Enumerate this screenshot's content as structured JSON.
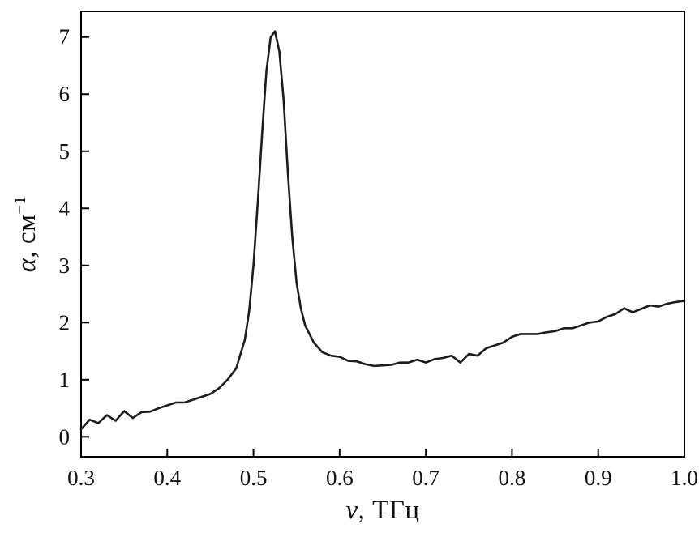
{
  "chart_data": {
    "type": "line",
    "title": "",
    "xlabel": "ν, ТГц",
    "ylabel": "α, см⁻¹",
    "xlabel_parts": {
      "var": "ν",
      "rest": ", ТГц"
    },
    "ylabel_parts": {
      "var": "α",
      "rest": ", см",
      "sup": "−1"
    },
    "xlim": [
      0.3,
      1.0
    ],
    "ylim": [
      -0.35,
      7.45
    ],
    "xticks": [
      0.3,
      0.4,
      0.5,
      0.6,
      0.7,
      0.8,
      0.9,
      1.0
    ],
    "yticks": [
      0,
      1,
      2,
      3,
      4,
      5,
      6,
      7
    ],
    "xtick_labels": [
      "0.3",
      "0.4",
      "0.5",
      "0.6",
      "0.7",
      "0.8",
      "0.9",
      "1.0"
    ],
    "ytick_labels": [
      "0",
      "1",
      "2",
      "3",
      "4",
      "5",
      "6",
      "7"
    ],
    "grid": false,
    "legend_position": "none",
    "line_color": "#1c1c1c",
    "line_width": 2.6,
    "frame_color": "#000000",
    "series": [
      {
        "name": "absorption-spectrum",
        "x": [
          0.3,
          0.31,
          0.32,
          0.33,
          0.34,
          0.35,
          0.36,
          0.37,
          0.38,
          0.39,
          0.4,
          0.41,
          0.42,
          0.43,
          0.44,
          0.45,
          0.46,
          0.47,
          0.48,
          0.49,
          0.495,
          0.5,
          0.505,
          0.51,
          0.515,
          0.52,
          0.525,
          0.53,
          0.535,
          0.54,
          0.545,
          0.55,
          0.555,
          0.56,
          0.57,
          0.58,
          0.59,
          0.6,
          0.61,
          0.62,
          0.63,
          0.64,
          0.65,
          0.66,
          0.67,
          0.68,
          0.69,
          0.7,
          0.71,
          0.72,
          0.73,
          0.74,
          0.75,
          0.76,
          0.77,
          0.78,
          0.79,
          0.8,
          0.81,
          0.82,
          0.83,
          0.84,
          0.85,
          0.86,
          0.87,
          0.88,
          0.89,
          0.9,
          0.91,
          0.92,
          0.93,
          0.94,
          0.95,
          0.96,
          0.97,
          0.98,
          0.99,
          1.0
        ],
        "y": [
          0.13,
          0.3,
          0.24,
          0.38,
          0.28,
          0.45,
          0.33,
          0.43,
          0.44,
          0.5,
          0.55,
          0.6,
          0.6,
          0.65,
          0.7,
          0.75,
          0.85,
          1.0,
          1.2,
          1.7,
          2.2,
          3.0,
          4.1,
          5.3,
          6.4,
          7.0,
          7.1,
          6.75,
          5.9,
          4.6,
          3.5,
          2.7,
          2.25,
          1.95,
          1.65,
          1.48,
          1.42,
          1.4,
          1.33,
          1.32,
          1.27,
          1.24,
          1.25,
          1.26,
          1.3,
          1.3,
          1.35,
          1.3,
          1.36,
          1.38,
          1.42,
          1.3,
          1.45,
          1.42,
          1.55,
          1.6,
          1.65,
          1.75,
          1.8,
          1.8,
          1.8,
          1.83,
          1.85,
          1.9,
          1.9,
          1.95,
          2.0,
          2.02,
          2.1,
          2.15,
          2.25,
          2.18,
          2.24,
          2.3,
          2.28,
          2.33,
          2.36,
          2.38
        ]
      }
    ]
  }
}
